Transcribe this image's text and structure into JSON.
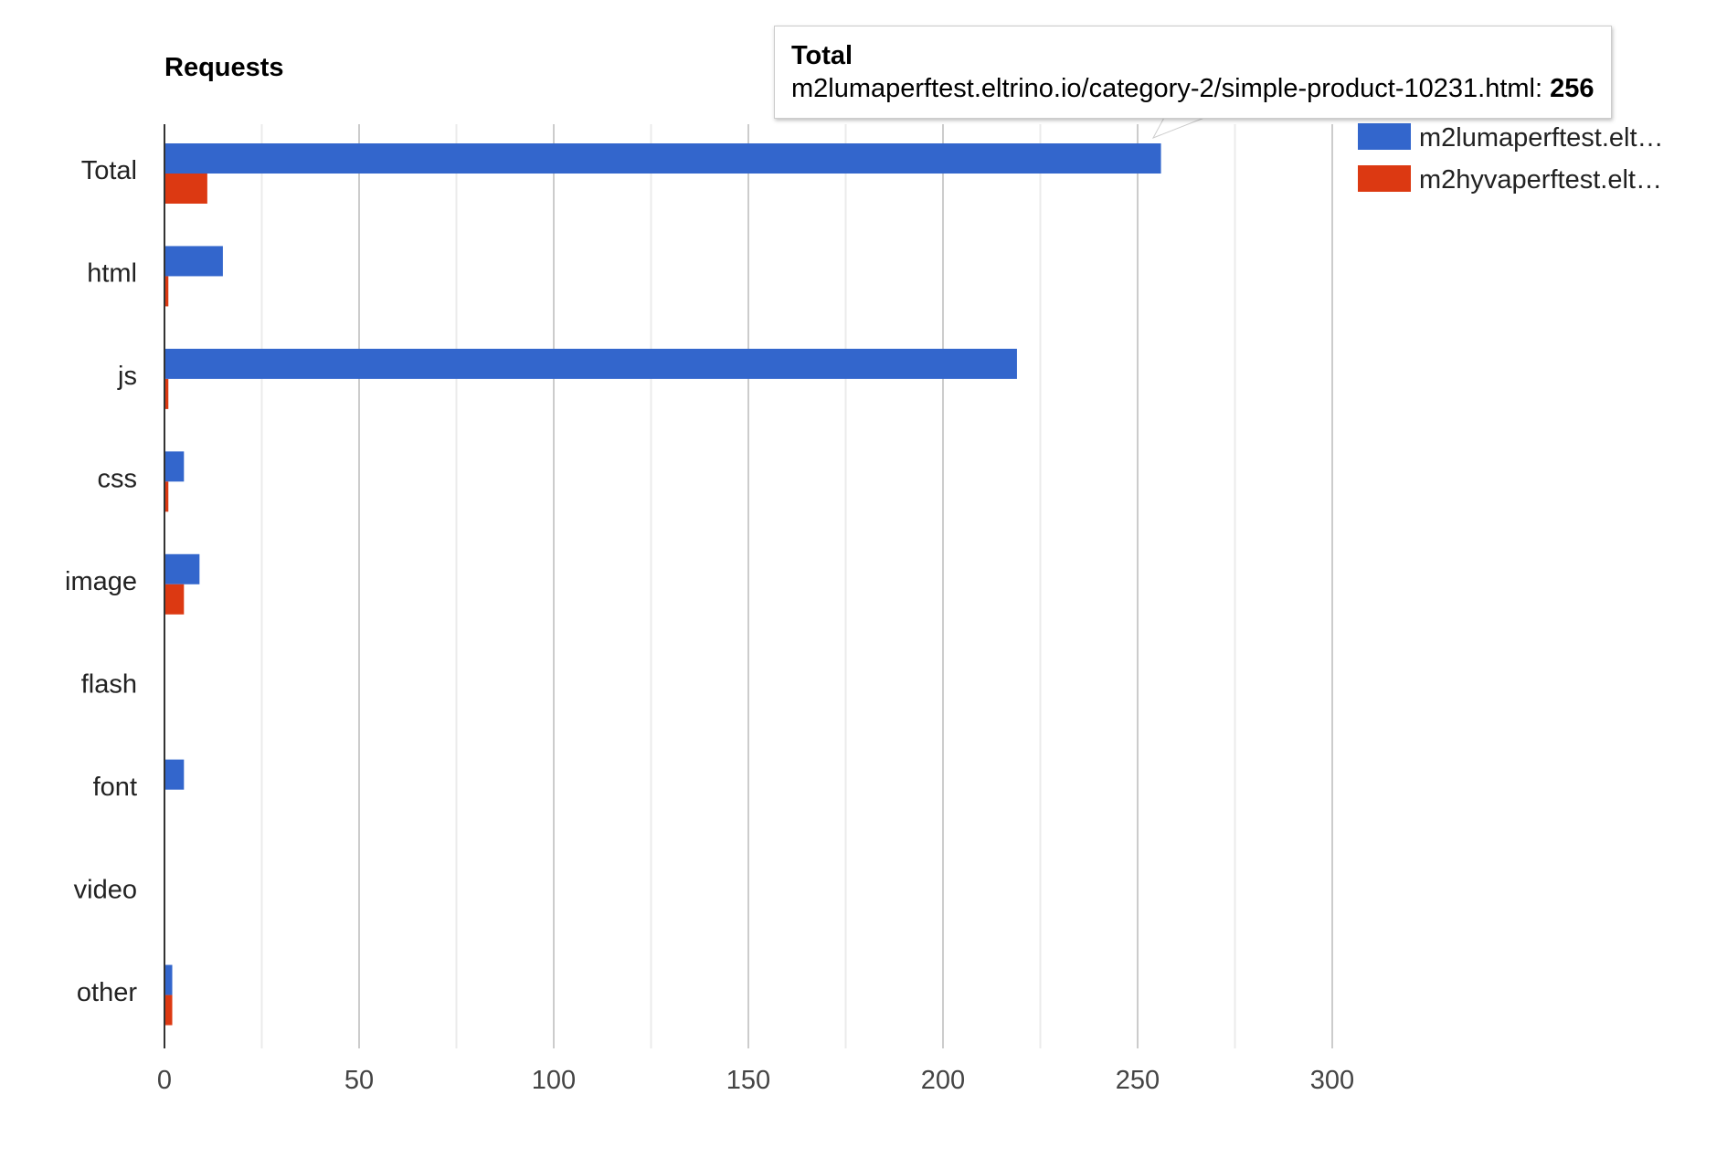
{
  "chart_data": {
    "type": "bar",
    "orientation": "horizontal",
    "title": "Requests",
    "categories": [
      "Total",
      "html",
      "js",
      "css",
      "image",
      "flash",
      "font",
      "video",
      "other"
    ],
    "series": [
      {
        "name": "m2lumaperftest.elt…",
        "color": "#3366cc",
        "values": [
          256,
          15,
          219,
          5,
          9,
          0,
          5,
          0,
          2
        ]
      },
      {
        "name": "m2hyvaperftest.elt…",
        "color": "#dc3912",
        "values": [
          11,
          1,
          1,
          1,
          5,
          0,
          0,
          0,
          2
        ]
      }
    ],
    "xlim": [
      0,
      300
    ],
    "xticks": [
      0,
      50,
      100,
      150,
      200,
      250,
      300
    ],
    "grid": true,
    "legend_position": "right"
  },
  "tooltip": {
    "title": "Total",
    "label": "m2lumaperftest.eltrino.io/category-2/simple-product-10231.html: ",
    "value": "256"
  }
}
